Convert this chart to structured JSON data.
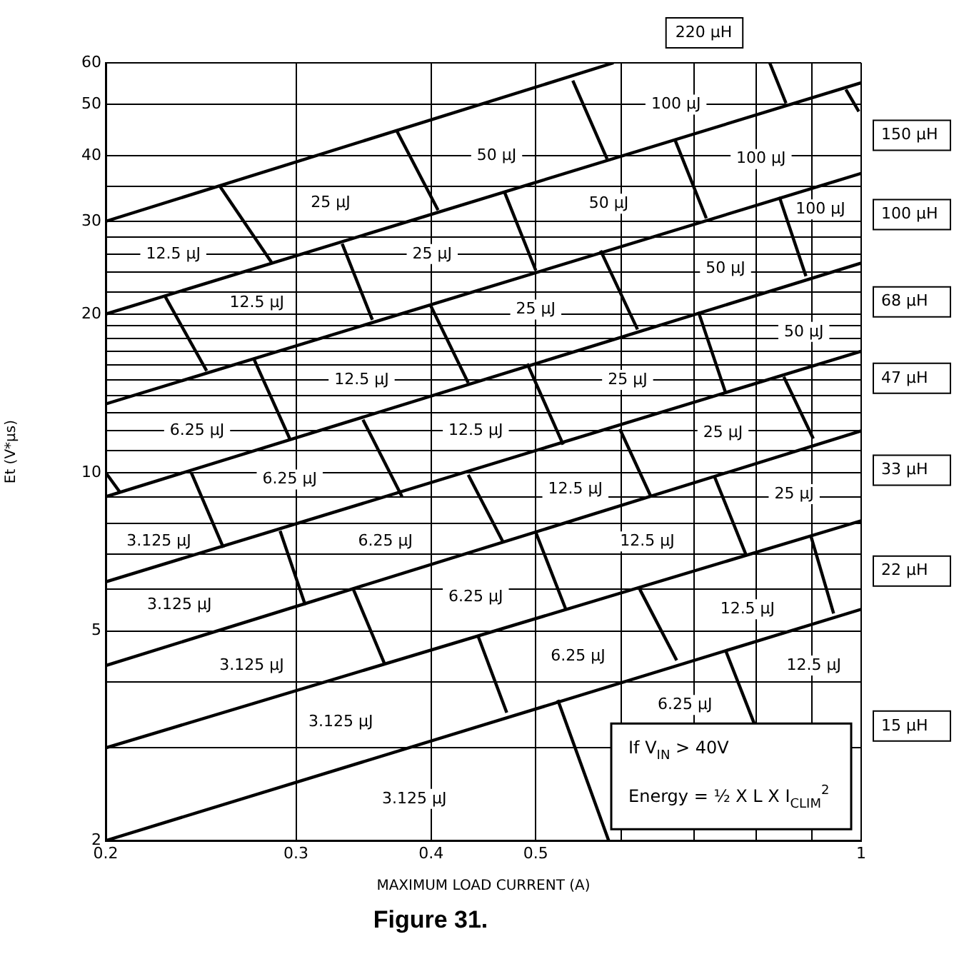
{
  "chart_data": {
    "type": "line",
    "title": "Figure 31.",
    "xlabel": "MAXIMUM LOAD CURRENT (A)",
    "ylabel": "Et (V*μs)",
    "log": "xy",
    "grid": true,
    "legend": false,
    "xlim": [
      0.2,
      1
    ],
    "ylim": [
      2,
      60
    ],
    "xticks": [
      0.2,
      0.3,
      0.4,
      0.5,
      {
        "value": 0.6,
        "label": null
      },
      {
        "value": 0.7,
        "label": null
      },
      {
        "value": 0.8,
        "label": null
      },
      {
        "value": 0.9,
        "label": null
      },
      1
    ],
    "yticks": [
      2,
      {
        "value": 3,
        "label": null
      },
      {
        "value": 4,
        "label": null
      },
      5,
      {
        "value": 6,
        "label": null
      },
      {
        "value": 7,
        "label": null
      },
      {
        "value": 8,
        "label": null
      },
      {
        "value": 9,
        "label": null
      },
      10,
      {
        "value": 11,
        "label": null
      },
      {
        "value": 12,
        "label": null
      },
      {
        "value": 13,
        "label": null
      },
      {
        "value": 14,
        "label": null
      },
      {
        "value": 15,
        "label": null
      },
      {
        "value": 16,
        "label": null
      },
      {
        "value": 17,
        "label": null
      },
      {
        "value": 18,
        "label": null
      },
      {
        "value": 19,
        "label": null
      },
      20,
      {
        "value": 22,
        "label": null
      },
      {
        "value": 24,
        "label": null
      },
      {
        "value": 26,
        "label": null
      },
      {
        "value": 28,
        "label": null
      },
      30,
      {
        "value": 35,
        "label": null
      },
      40,
      50,
      60
    ],
    "series": [
      {
        "color": "#000000",
        "x": [
          0.2,
          0.59
        ],
        "values": [
          30,
          60
        ]
      },
      {
        "color": "#000000",
        "x": [
          0.2,
          1
        ],
        "values": [
          20,
          55
        ]
      },
      {
        "color": "#000000",
        "x": [
          0.2,
          1
        ],
        "values": [
          13.5,
          37
        ]
      },
      {
        "color": "#000000",
        "x": [
          0.2,
          1
        ],
        "values": [
          9,
          25
        ]
      },
      {
        "color": "#000000",
        "x": [
          0.2,
          1
        ],
        "values": [
          6.2,
          17
        ]
      },
      {
        "color": "#000000",
        "x": [
          0.2,
          1
        ],
        "values": [
          4.3,
          12
        ]
      },
      {
        "color": "#000000",
        "x": [
          0.2,
          1
        ],
        "values": [
          3,
          8.1
        ]
      },
      {
        "color": "#000000",
        "x": [
          0.2,
          1
        ],
        "values": [
          2,
          5.5
        ]
      },
      {
        "color": "#000000",
        "x": [
          0.255,
          0.285
        ],
        "values": [
          35,
          25
        ]
      },
      {
        "color": "#000000",
        "x": [
          0.372,
          0.406
        ],
        "values": [
          44.5,
          31.5
        ]
      },
      {
        "color": "#000000",
        "x": [
          0.227,
          0.248
        ],
        "values": [
          21.6,
          15.6
        ]
      },
      {
        "color": "#000000",
        "x": [
          0.331,
          0.353
        ],
        "values": [
          27.2,
          19.5
        ]
      },
      {
        "color": "#000000",
        "x": [
          0.274,
          0.296
        ],
        "values": [
          16.5,
          11.6
        ]
      },
      {
        "color": "#000000",
        "x": [
          0.399,
          0.433
        ],
        "values": [
          20.9,
          14.8
        ]
      },
      {
        "color": "#000000",
        "x": [
          0.2,
          0.206
        ],
        "values": [
          10,
          9.2
        ]
      },
      {
        "color": "#000000",
        "x": [
          0.346,
          0.376
        ],
        "values": [
          12.6,
          9
        ]
      },
      {
        "color": "#000000",
        "x": [
          0.24,
          0.257
        ],
        "values": [
          10,
          7.2
        ]
      },
      {
        "color": "#000000",
        "x": [
          0.433,
          0.466
        ],
        "values": [
          9.9,
          7.4
        ]
      },
      {
        "color": "#000000",
        "x": [
          0.29,
          0.306
        ],
        "values": [
          7.75,
          5.6
        ]
      },
      {
        "color": "#000000",
        "x": [
          0.339,
          0.362
        ],
        "values": [
          6,
          4.35
        ]
      },
      {
        "color": "#000000",
        "x": [
          0.442,
          0.47
        ],
        "values": [
          4.9,
          3.5
        ]
      },
      {
        "color": "#000000",
        "x": [
          0.5,
          0.533
        ],
        "values": [
          7.7,
          5.5
        ]
      },
      {
        "color": "#000000",
        "x": [
          0.524,
          0.584
        ],
        "values": [
          3.7,
          2
        ]
      },
      {
        "color": "#000000",
        "x": [
          0.624,
          0.675
        ],
        "values": [
          6,
          4.4
        ]
      },
      {
        "color": "#000000",
        "x": [
          0.749,
          0.798
        ],
        "values": [
          4.6,
          3.3
        ]
      },
      {
        "color": "#000000",
        "x": [
          0.898,
          0.943
        ],
        "values": [
          7.6,
          5.4
        ]
      },
      {
        "color": "#000000",
        "x": [
          0.732,
          0.782
        ],
        "values": [
          9.8,
          7
        ]
      },
      {
        "color": "#000000",
        "x": [
          0.541,
          0.582
        ],
        "values": [
          55.5,
          39.4
        ]
      },
      {
        "color": "#000000",
        "x": [
          0.823,
          0.852
        ],
        "values": [
          60,
          50.3
        ]
      },
      {
        "color": "#000000",
        "x": [
          0.968,
          0.995
        ],
        "values": [
          53.4,
          48.5
        ]
      },
      {
        "color": "#000000",
        "x": [
          0.468,
          0.5
        ],
        "values": [
          34,
          24.2
        ]
      },
      {
        "color": "#000000",
        "x": [
          0.673,
          0.719
        ],
        "values": [
          42.7,
          30.4
        ]
      },
      {
        "color": "#000000",
        "x": [
          0.84,
          0.889
        ],
        "values": [
          33.4,
          23.6
        ]
      },
      {
        "color": "#000000",
        "x": [
          0.574,
          0.621
        ],
        "values": [
          26.4,
          18.7
        ]
      },
      {
        "color": "#000000",
        "x": [
          0.707,
          0.749
        ],
        "values": [
          20.2,
          14.2
        ]
      },
      {
        "color": "#000000",
        "x": [
          0.491,
          0.53
        ],
        "values": [
          16.1,
          11.3
        ]
      },
      {
        "color": "#000000",
        "x": [
          0.848,
          0.903
        ],
        "values": [
          15.2,
          11.6
        ]
      },
      {
        "color": "#000000",
        "x": [
          0.598,
          0.639
        ],
        "values": [
          12.1,
          9
        ]
      }
    ],
    "annotations": [
      "100 μJ",
      "50 μJ",
      "100 μJ",
      "25 μJ",
      "50 μJ",
      "100 μJ",
      "12.5 μJ",
      "25 μJ",
      "50 μJ",
      "12.5 μJ",
      "25 μJ",
      "50 μJ",
      "12.5 μJ",
      "25 μJ",
      "6.25 μJ",
      "12.5 μJ",
      "25 μJ",
      "6.25 μJ",
      "12.5 μJ",
      "25 μJ",
      "3.125 μJ",
      "6.25 μJ",
      "12.5 μJ",
      "3.125 μJ",
      "6.25 μJ",
      "12.5 μJ",
      "3.125 μJ",
      "6.25 μJ",
      "12.5 μJ",
      "3.125 μJ",
      "6.25 μJ",
      "3.125 μJ",
      "220 μH",
      "150 μH",
      "100 μH",
      "68 μH",
      "47 μH",
      "33 μH",
      "22 μH",
      "15 μH",
      "If V$_{IN}$ > 40V",
      "Energy = ½ X L X I$_{CLIM}$$^{2}$"
    ]
  }
}
